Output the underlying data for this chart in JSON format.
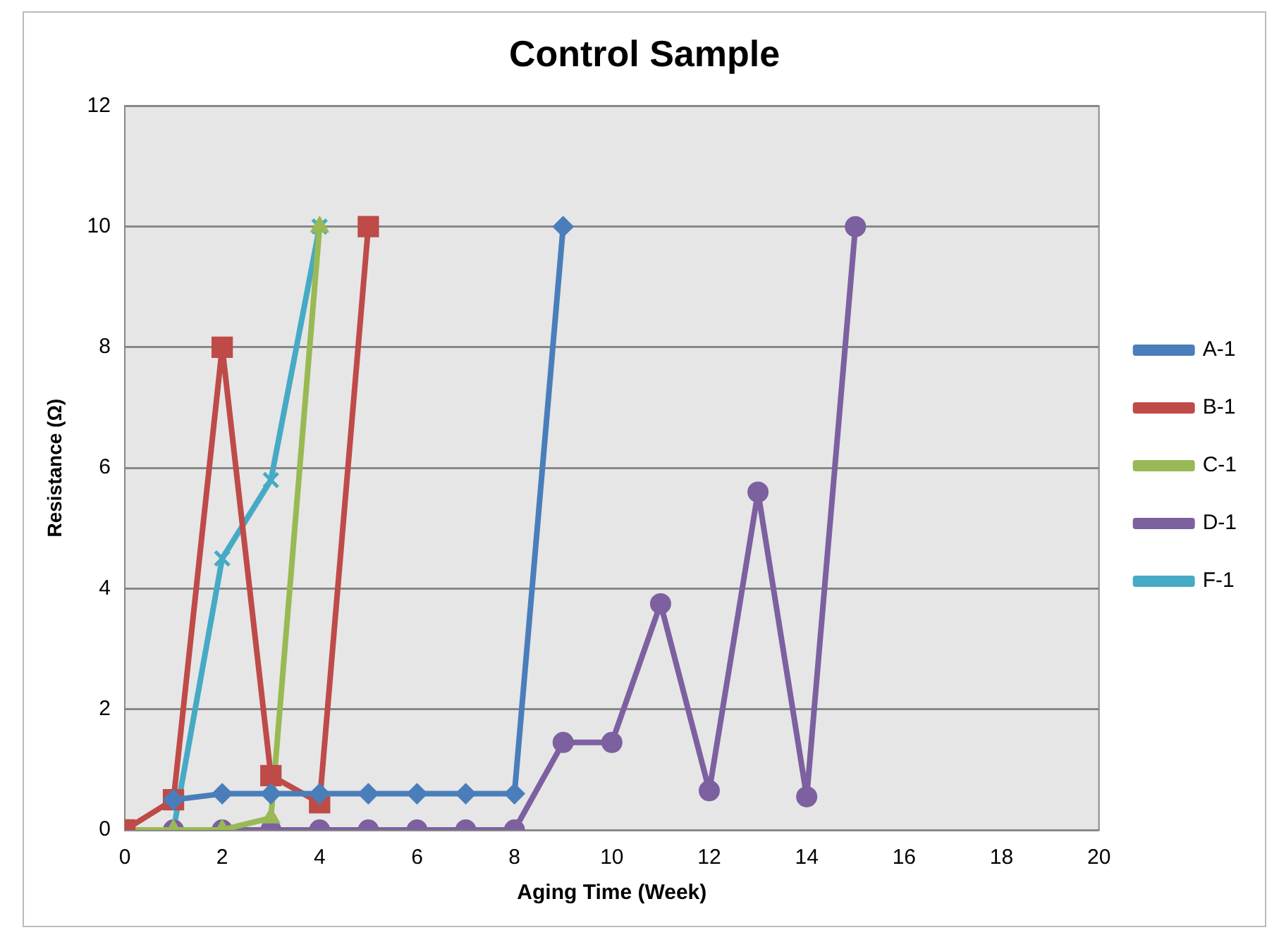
{
  "chart_data": {
    "type": "line",
    "title": "Control Sample",
    "xlabel": "Aging Time (Week)",
    "ylabel": "Resistance (Ω)",
    "xlim": [
      0,
      20
    ],
    "xticks": [
      0,
      2,
      4,
      6,
      8,
      10,
      12,
      14,
      16,
      18,
      20
    ],
    "ylim": [
      0,
      12
    ],
    "yticks": [
      0,
      2,
      4,
      6,
      8,
      10,
      12
    ],
    "grid": "y",
    "legend": "right",
    "series": [
      {
        "name": "A-1",
        "color": "#4a7ebb",
        "marker": "diamond",
        "x": [
          1,
          2,
          3,
          4,
          5,
          6,
          7,
          8,
          9
        ],
        "values": [
          0.5,
          0.6,
          0.6,
          0.6,
          0.6,
          0.6,
          0.6,
          0.6,
          10
        ]
      },
      {
        "name": "B-1",
        "color": "#be4b48",
        "marker": "square",
        "x": [
          0,
          1,
          2,
          3,
          4,
          5
        ],
        "values": [
          0,
          0.5,
          8,
          0.9,
          0.45,
          10
        ]
      },
      {
        "name": "C-1",
        "color": "#98b954",
        "marker": "triangle",
        "x": [
          0,
          1,
          2,
          3,
          4
        ],
        "values": [
          0,
          0,
          0,
          0.2,
          10
        ]
      },
      {
        "name": "D-1",
        "color": "#7d60a0",
        "marker": "circle",
        "x": [
          1,
          2,
          3,
          4,
          5,
          6,
          7,
          8,
          9,
          10,
          11,
          12,
          13,
          14,
          15
        ],
        "values": [
          0,
          0,
          0,
          0,
          0,
          0,
          0,
          0,
          1.45,
          1.45,
          3.75,
          0.65,
          5.6,
          0.55,
          10
        ]
      },
      {
        "name": "F-1",
        "color": "#46aac5",
        "marker": "cross",
        "x": [
          1,
          2,
          3,
          4
        ],
        "values": [
          0,
          4.5,
          5.8,
          10
        ]
      }
    ]
  }
}
